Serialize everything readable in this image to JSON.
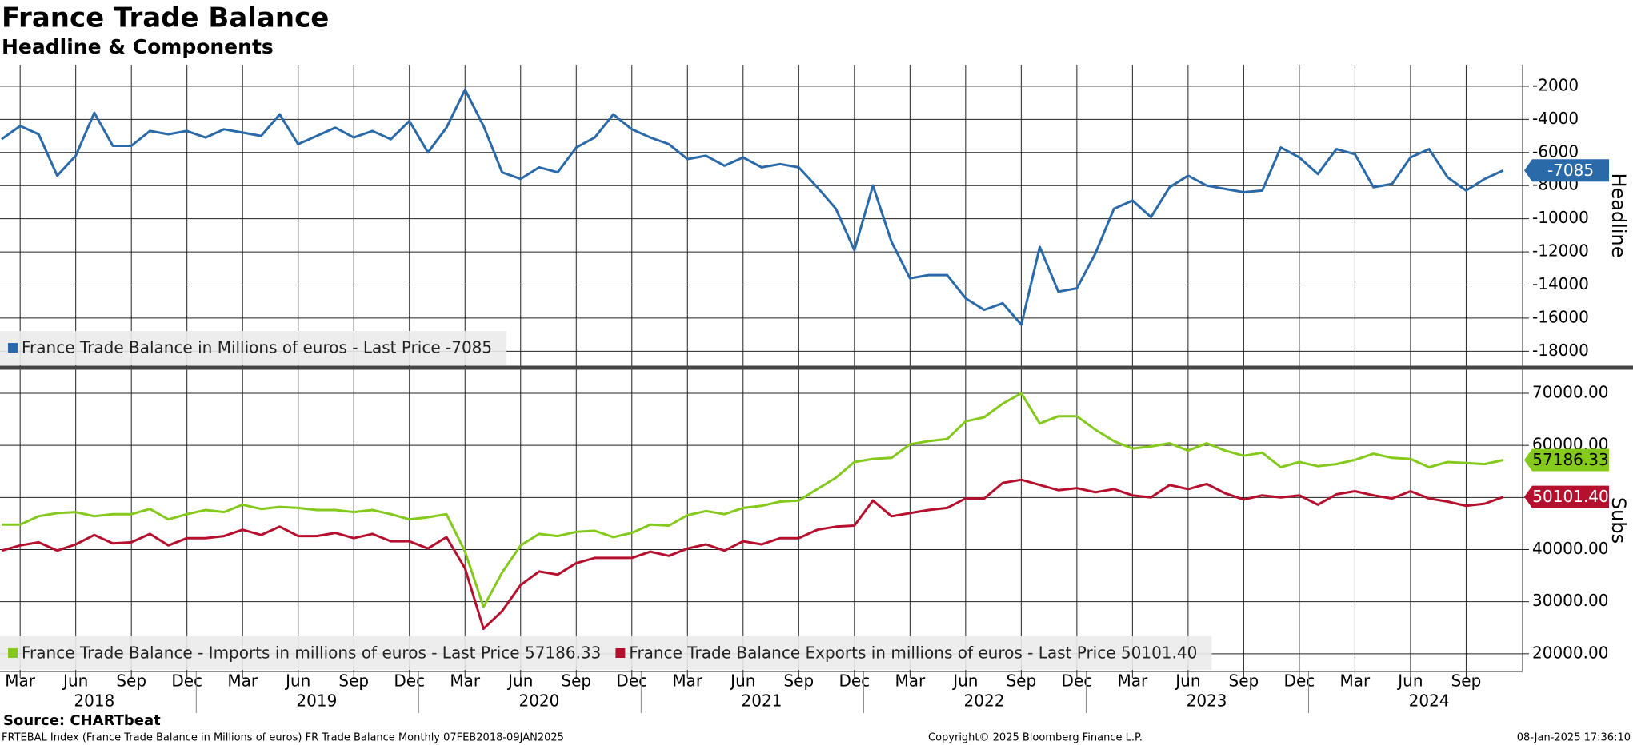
{
  "title": "France Trade Balance",
  "subtitle": "Headline & Components",
  "source": "Source: CHARTbeat",
  "footer_left": "FRTEBAL Index (France Trade Balance in Millions of euros) FR Trade Balance  Monthly 07FEB2018-09JAN2025",
  "footer_center": "Copyright© 2025 Bloomberg Finance L.P.",
  "footer_right": "08-Jan-2025 17:36:10",
  "chart_data": [
    {
      "type": "line",
      "y_label": "Headline",
      "ylim": [
        -18900,
        -700
      ],
      "yticks": [
        -2000,
        -4000,
        -6000,
        -8000,
        -10000,
        -12000,
        -14000,
        -16000,
        -18000
      ],
      "grid": true,
      "legend": "lower left",
      "series": [
        {
          "name": "France Trade Balance in Millions of euros - Last Price -7085",
          "color": "#2b6aa8",
          "values": [
            -5200,
            -4400,
            -4900,
            -7400,
            -6200,
            -3600,
            -5600,
            -5600,
            -4700,
            -4900,
            -4700,
            -5100,
            -4600,
            -4800,
            -5000,
            -3700,
            -5500,
            -5000,
            -4500,
            -5100,
            -4700,
            -5200,
            -4100,
            -6000,
            -4500,
            -2200,
            -4400,
            -7200,
            -7600,
            -6900,
            -7200,
            -5700,
            -5100,
            -3700,
            -4600,
            -5100,
            -5500,
            -6400,
            -6200,
            -6800,
            -6300,
            -6900,
            -6700,
            -6900,
            -8100,
            -9400,
            -11900,
            -8000,
            -11400,
            -13600,
            -13400,
            -13400,
            -14800,
            -15500,
            -15100,
            -16400,
            -11700,
            -14400,
            -14200,
            -12100,
            -9400,
            -8900,
            -9900,
            -8100,
            -7400,
            -8000,
            -8200,
            -8400,
            -8300,
            -5700,
            -6300,
            -7300,
            -5800,
            -6100,
            -8100,
            -7900,
            -6300,
            -5800,
            -7500,
            -8300,
            -7600,
            -7085
          ]
        }
      ]
    },
    {
      "type": "line",
      "y_label": "Subs",
      "ylim": [
        16600,
        74600
      ],
      "yticks": [
        {
          "value": 70000,
          "label": "70000.00"
        },
        {
          "value": 60000,
          "label": "60000.00"
        },
        {
          "value": 50000,
          "label": "50000.00"
        },
        {
          "value": 40000,
          "label": "40000.00"
        },
        {
          "value": 30000,
          "label": "30000.00"
        },
        {
          "value": 20000,
          "label": "20000.00"
        }
      ],
      "grid": true,
      "legend": "lower left",
      "categories": [
        null,
        "Mar",
        null,
        null,
        "Jun",
        null,
        null,
        "Sep",
        null,
        null,
        "Dec",
        null,
        null,
        "Mar",
        null,
        null,
        "Jun",
        null,
        null,
        "Sep",
        null,
        null,
        "Dec",
        null,
        null,
        "Mar",
        null,
        null,
        "Jun",
        null,
        null,
        "Sep",
        null,
        null,
        "Dec",
        null,
        null,
        "Mar",
        null,
        null,
        "Jun",
        null,
        null,
        "Sep",
        null,
        null,
        "Dec",
        null,
        null,
        "Mar",
        null,
        null,
        "Jun",
        null,
        null,
        "Sep",
        null,
        null,
        "Dec",
        null,
        null,
        "Mar",
        null,
        null,
        "Jun",
        null,
        null,
        "Sep",
        null,
        null,
        "Dec",
        null,
        null,
        "Mar",
        null,
        null,
        "Jun",
        null,
        null,
        "Sep",
        null,
        null
      ],
      "years": [
        "2018",
        "2019",
        "2020",
        "2021",
        "2022",
        "2023",
        "2024"
      ],
      "series": [
        {
          "name": "France Trade Balance - Imports in millions of euros - Last Price 57186.33",
          "color": "#84c91c",
          "values": [
            44800,
            44800,
            46400,
            47000,
            47200,
            46400,
            46800,
            46800,
            47800,
            45800,
            46800,
            47600,
            47200,
            48600,
            47800,
            48200,
            48000,
            47600,
            47600,
            47200,
            47600,
            46800,
            45800,
            46200,
            46800,
            39600,
            29000,
            35600,
            40800,
            43000,
            42600,
            43400,
            43600,
            42400,
            43200,
            44800,
            44600,
            46600,
            47400,
            46800,
            48000,
            48400,
            49200,
            49400,
            51600,
            53800,
            56800,
            57400,
            57600,
            60200,
            60800,
            61200,
            64600,
            65400,
            68000,
            70000,
            64200,
            65600,
            65600,
            63000,
            60800,
            59400,
            59800,
            60400,
            59000,
            60400,
            59000,
            58000,
            58600,
            55800,
            56800,
            56000,
            56400,
            57200,
            58400,
            57600,
            57400,
            55800,
            56800,
            56600,
            56400,
            57186.33
          ]
        },
        {
          "name": "France Trade Balance Exports in millions of euros - Last Price 50101.40",
          "color": "#b5112f",
          "last_price_label": "50101.40",
          "values": [
            39800,
            40800,
            41400,
            39800,
            41000,
            42800,
            41200,
            41400,
            43000,
            40800,
            42200,
            42200,
            42600,
            43800,
            42800,
            44400,
            42600,
            42600,
            43200,
            42200,
            43000,
            41600,
            41600,
            40200,
            42400,
            36400,
            24800,
            28200,
            33200,
            35800,
            35200,
            37400,
            38400,
            38400,
            38400,
            39600,
            38800,
            40200,
            41000,
            39800,
            41600,
            41000,
            42200,
            42200,
            43800,
            44400,
            44600,
            49400,
            46400,
            47000,
            47600,
            48000,
            49800,
            49800,
            52800,
            53400,
            52400,
            51400,
            51800,
            51000,
            51600,
            50400,
            50000,
            52400,
            51600,
            52600,
            50800,
            49600,
            50400,
            50000,
            50400,
            48600,
            50600,
            51200,
            50400,
            49800,
            51200,
            49800,
            49200,
            48400,
            48800,
            50101.4
          ]
        }
      ]
    }
  ]
}
